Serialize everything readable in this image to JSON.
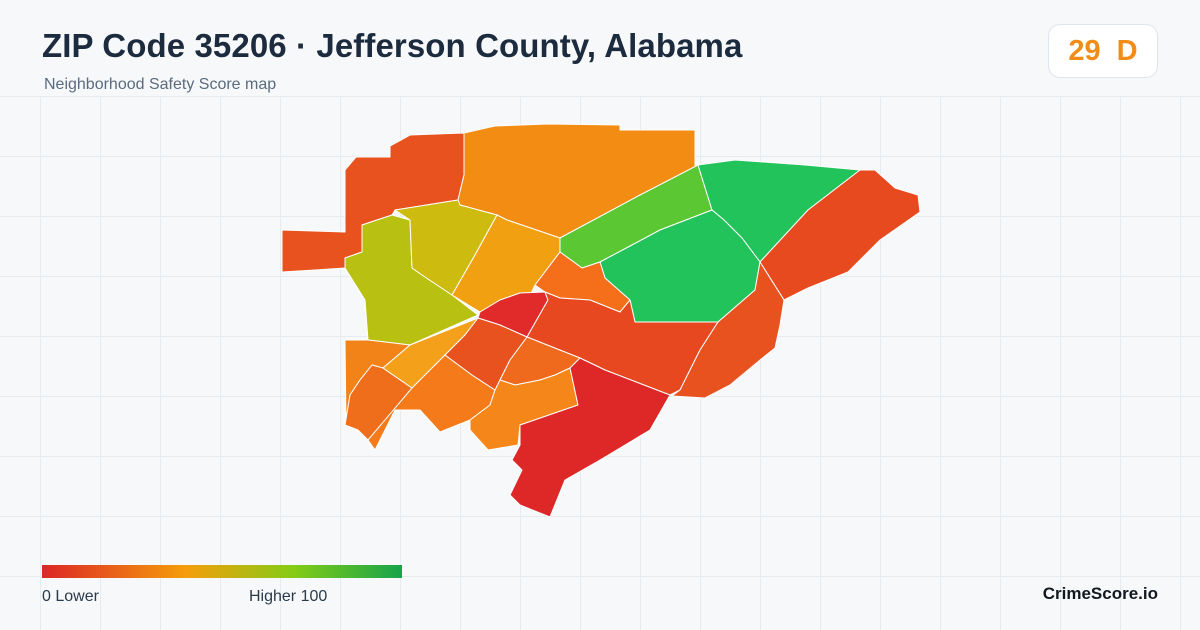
{
  "header": {
    "title": "ZIP Code 35206 · Jefferson County, Alabama",
    "subtitle": "Neighborhood Safety Score map"
  },
  "score_badge": {
    "score": "29",
    "grade": "D",
    "color": "#f28c18"
  },
  "legend": {
    "low_label": "0  Lower",
    "high_label": "Higher  100",
    "gradient_colors": [
      "#dc2626",
      "#f59e0b",
      "#84cc16",
      "#16a34a"
    ]
  },
  "brand": "CrimeScore.io",
  "map": {
    "neighborhoods": [
      {
        "name": "area-northwest",
        "color": "#e8521f"
      },
      {
        "name": "area-north-center",
        "color": "#f28c12"
      },
      {
        "name": "area-north-east-green",
        "color": "#5bc733"
      },
      {
        "name": "area-northeast-top",
        "color": "#22c35a"
      },
      {
        "name": "area-east-far",
        "color": "#e84a20"
      },
      {
        "name": "area-west-olive",
        "color": "#b8c012"
      },
      {
        "name": "area-west-yellow",
        "color": "#cdbb0f"
      },
      {
        "name": "area-central-amber",
        "color": "#f0a010"
      },
      {
        "name": "area-east-green",
        "color": "#22c35a"
      },
      {
        "name": "area-central-small",
        "color": "#f56f1a"
      },
      {
        "name": "area-center-red",
        "color": "#e12b2b"
      },
      {
        "name": "area-center-east",
        "color": "#e8481f"
      },
      {
        "name": "area-east-lower",
        "color": "#e8521f"
      },
      {
        "name": "area-southwest-a",
        "color": "#f28318"
      },
      {
        "name": "area-southwest-b",
        "color": "#ef6e1c"
      },
      {
        "name": "area-southwest-c",
        "color": "#f5a01a"
      },
      {
        "name": "area-south-center",
        "color": "#f47a1a"
      },
      {
        "name": "area-center-south",
        "color": "#e8521f"
      },
      {
        "name": "area-south-mid",
        "color": "#ef6a1c"
      },
      {
        "name": "area-south-orange",
        "color": "#f5861a"
      },
      {
        "name": "area-south-red",
        "color": "#de2828"
      }
    ]
  }
}
